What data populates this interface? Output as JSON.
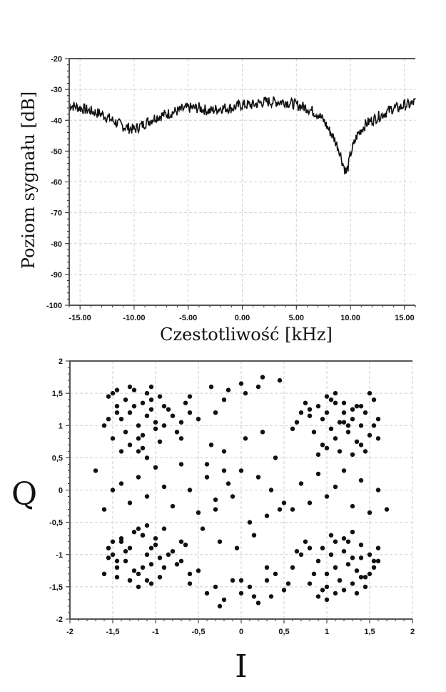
{
  "chart_data": [
    {
      "type": "line",
      "xlabel": "Czestotliwość [kHz]",
      "ylabel": "Poziom sygnału [dB]",
      "xlim": [
        -16.0,
        16.0
      ],
      "ylim": [
        -100,
        -20
      ],
      "x_ticks": [
        -15,
        -10,
        -5,
        0,
        5,
        10,
        15
      ],
      "x_tick_labels": [
        "-15.00",
        "-10.00",
        "-5.00",
        "0.00",
        "5.00",
        "10.00",
        "15.00"
      ],
      "y_ticks": [
        -20,
        -30,
        -40,
        -50,
        -60,
        -70,
        -80,
        -90,
        -100
      ],
      "y_tick_labels": [
        "-20",
        "-30",
        "-40",
        "-50",
        "-60",
        "-70",
        "-80",
        "-90",
        "-100"
      ],
      "grid": true,
      "series": [
        {
          "x": [
            -16.0,
            -15.0,
            -14.0,
            -13.0,
            -12.0,
            -11.0,
            -10.0,
            -9.0,
            -8.0,
            -7.0,
            -6.0,
            -5.0,
            -4.0,
            -3.0,
            -2.0,
            -1.0,
            0.0,
            1.0,
            2.0,
            3.0,
            4.0,
            5.0,
            6.0,
            7.0,
            7.5,
            8.0,
            8.5,
            9.0,
            9.3,
            9.6,
            9.8,
            10.0,
            10.3,
            10.6,
            11.0,
            11.5,
            12.0,
            12.5,
            13.0,
            13.5,
            14.0,
            14.5,
            15.0,
            15.5,
            16.0
          ],
          "y": [
            -35,
            -36,
            -37,
            -38,
            -40,
            -42,
            -43,
            -41,
            -39,
            -38,
            -37,
            -36,
            -36,
            -37,
            -36,
            -36,
            -35,
            -35,
            -34,
            -34,
            -34,
            -35,
            -36,
            -38,
            -40,
            -43,
            -46,
            -50,
            -54,
            -57,
            -55,
            -51,
            -48,
            -45,
            -43,
            -41,
            -40,
            -39,
            -38,
            -37,
            -36,
            -36,
            -35,
            -35,
            -34
          ]
        }
      ]
    },
    {
      "type": "scatter",
      "xlabel": "I",
      "ylabel": "Q",
      "xlim": [
        -2,
        2
      ],
      "ylim": [
        -2,
        2
      ],
      "x_ticks": [
        -2,
        -1.5,
        -1,
        -0.5,
        0,
        0.5,
        1,
        1.5,
        2
      ],
      "x_tick_labels": [
        "-2",
        "-1,5",
        "-1",
        "-0,5",
        "0",
        "0,5",
        "1",
        "1,5",
        "2"
      ],
      "y_ticks": [
        2,
        1.5,
        1,
        0.5,
        0,
        -0.5,
        -1,
        -1.5,
        -2
      ],
      "y_tick_labels": [
        "2",
        "1,5",
        "1",
        "0,5",
        "0",
        "-0,5",
        "-1",
        "-1,5",
        "-2"
      ],
      "grid": true,
      "series": [
        {
          "x": [
            -1.5,
            -1.45,
            -1.4,
            -1.35,
            -1.3,
            -1.2,
            -1.15,
            -1.1,
            -1.05,
            -1.0,
            -0.95,
            -1.25,
            -1.35,
            -1.45,
            -1.55,
            -1.6,
            -1.2,
            -1.1,
            -1.0,
            -0.9,
            -0.8,
            -0.7,
            -0.65,
            -0.6,
            -1.3,
            -1.25,
            -1.15,
            -1.05,
            -0.95,
            -0.85,
            -0.75,
            -1.4,
            -1.5,
            -1.2,
            -1.1,
            -0.9,
            -1.05,
            -1.15,
            -1.3,
            -0.7,
            -0.6,
            -0.5,
            -1.55,
            -1.45,
            -1.5,
            -1.45,
            -1.4,
            -1.35,
            -1.3,
            -1.2,
            -1.15,
            -1.1,
            -1.05,
            -1.0,
            -0.95,
            -1.25,
            -1.35,
            -1.45,
            -1.55,
            -1.6,
            -1.2,
            -1.1,
            -1.0,
            -0.9,
            -0.8,
            -0.7,
            -0.65,
            -0.6,
            -1.3,
            -1.25,
            -1.15,
            -1.05,
            -0.95,
            -0.85,
            -0.75,
            -1.4,
            -1.5,
            -1.2,
            -1.1,
            -0.9,
            -1.05,
            -1.15,
            -1.3,
            -0.7,
            -0.6,
            -0.5,
            -1.55,
            -1.45,
            0.9,
            0.95,
            1.0,
            1.05,
            1.1,
            1.15,
            1.2,
            1.25,
            1.3,
            1.35,
            1.4,
            1.45,
            1.5,
            1.55,
            1.6,
            0.85,
            0.8,
            1.0,
            1.1,
            1.2,
            1.3,
            1.4,
            0.95,
            1.05,
            1.15,
            1.25,
            1.35,
            0.7,
            0.6,
            0.75,
            1.5,
            1.6,
            1.45,
            1.55,
            0.9,
            1.0,
            1.1,
            1.2,
            0.8,
            1.3,
            1.4,
            0.65,
            0.9,
            0.95,
            1.0,
            1.05,
            1.1,
            1.15,
            1.2,
            1.25,
            1.3,
            1.35,
            1.4,
            1.45,
            1.5,
            1.55,
            1.6,
            0.85,
            0.8,
            1.0,
            1.1,
            1.2,
            1.3,
            1.4,
            0.95,
            1.05,
            1.15,
            1.25,
            1.35,
            0.7,
            0.6,
            0.75,
            1.5,
            1.6,
            1.45,
            1.55,
            0.9,
            1.0,
            1.1,
            1.2,
            0.8,
            1.3,
            1.4,
            0.65,
            -0.4,
            -0.3,
            -0.2,
            -0.1,
            0.0,
            0.1,
            0.2,
            0.3,
            0.4,
            0.5,
            -0.45,
            -0.35,
            -0.25,
            -0.15,
            -0.05,
            0.05,
            0.15,
            0.25,
            0.35,
            0.45,
            -0.3,
            0.3,
            0.0,
            -0.2,
            0.2,
            -1.7,
            -1.6,
            -1.5,
            -1.4,
            -1.3,
            -1.2,
            -1.1,
            -1.0,
            -0.9,
            -0.8,
            -0.7,
            -0.6,
            -0.5,
            -0.4,
            -0.3,
            -0.2,
            0.6,
            0.7,
            0.8,
            0.9,
            1.0,
            1.1,
            1.2,
            1.3,
            1.4,
            1.5,
            1.6,
            1.7,
            -0.4,
            -0.3,
            -0.2,
            -0.1,
            0.0,
            0.1,
            0.2,
            0.3,
            0.4,
            0.5,
            -0.35,
            -0.15,
            0.05,
            0.25,
            0.45,
            -0.25,
            0.15,
            0.35,
            0.55,
            0.0
          ],
          "y": [
            1.5,
            1.3,
            1.1,
            1.4,
            1.2,
            1.0,
            1.35,
            1.15,
            1.25,
            1.05,
            1.45,
            1.3,
            0.9,
            1.2,
            1.1,
            1.0,
            0.8,
            1.5,
            0.95,
            1.3,
            1.15,
            1.05,
            1.35,
            1.2,
            0.7,
            1.55,
            0.85,
            1.4,
            0.75,
            1.25,
            0.9,
            0.6,
            0.8,
            0.6,
            0.5,
            1.0,
            1.6,
            0.65,
            1.6,
            0.8,
            1.45,
            1.1,
            1.45,
            1.55,
            -1.0,
            -1.2,
            -0.8,
            -1.1,
            -0.9,
            -1.3,
            -0.7,
            -1.0,
            -1.15,
            -0.85,
            -1.05,
            -1.25,
            -0.95,
            -1.35,
            -1.05,
            -1.3,
            -0.6,
            -1.4,
            -0.75,
            -1.2,
            -0.95,
            -1.1,
            -0.85,
            -1.3,
            -1.4,
            -0.65,
            -1.2,
            -0.9,
            -1.35,
            -1.0,
            -1.15,
            -0.75,
            -0.8,
            -1.5,
            -0.55,
            -0.6,
            -1.45,
            -0.7,
            -1.4,
            -0.8,
            -1.45,
            -1.25,
            -0.9,
            -1.1,
            1.3,
            1.1,
            1.2,
            0.95,
            1.35,
            1.05,
            1.2,
            0.9,
            1.1,
            1.3,
            1.0,
            1.2,
            0.85,
            1.4,
            1.1,
            0.9,
            1.15,
            1.45,
            0.8,
            1.05,
            1.25,
            1.3,
            0.7,
            1.4,
            0.6,
            1.0,
            0.75,
            1.2,
            0.95,
            1.35,
            1.5,
            0.8,
            0.6,
            1.0,
            0.55,
            0.65,
            1.5,
            1.35,
            1.25,
            0.55,
            0.7,
            1.05,
            -1.1,
            -0.9,
            -1.3,
            -1.0,
            -1.2,
            -1.4,
            -0.95,
            -1.15,
            -1.05,
            -1.25,
            -0.85,
            -1.35,
            -1.0,
            -1.2,
            -1.1,
            -1.3,
            -0.9,
            -1.5,
            -1.6,
            -0.75,
            -1.45,
            -1.05,
            -1.55,
            -0.7,
            -1.4,
            -0.8,
            -1.6,
            -1.0,
            -1.2,
            -0.8,
            -1.3,
            -0.9,
            -1.5,
            -1.1,
            -1.65,
            -1.7,
            -0.8,
            -1.55,
            -1.45,
            -0.65,
            -1.35,
            -0.95,
            0.4,
            -0.3,
            0.6,
            -0.1,
            0.3,
            -0.5,
            0.2,
            -0.4,
            0.5,
            -0.2,
            -0.6,
            0.7,
            -0.8,
            0.1,
            -0.9,
            0.8,
            -0.7,
            0.9,
            0.0,
            -0.3,
            1.2,
            -1.2,
            -1.4,
            1.4,
            1.6,
            0.3,
            -0.3,
            0.0,
            0.1,
            -0.2,
            0.2,
            -0.1,
            0.35,
            0.05,
            -0.25,
            0.4,
            0.0,
            -0.35,
            0.2,
            -0.15,
            0.3,
            -0.3,
            0.1,
            -0.2,
            0.25,
            -0.1,
            0.05,
            0.3,
            -0.25,
            0.15,
            -0.35,
            0.0,
            -0.3,
            -1.6,
            -1.5,
            -1.7,
            -1.4,
            -1.6,
            -1.5,
            -1.75,
            -1.4,
            -1.3,
            -1.55,
            1.6,
            1.55,
            1.5,
            1.75,
            1.7,
            -1.8,
            -1.65,
            -1.65,
            -1.45,
            1.65
          ]
        }
      ]
    }
  ]
}
